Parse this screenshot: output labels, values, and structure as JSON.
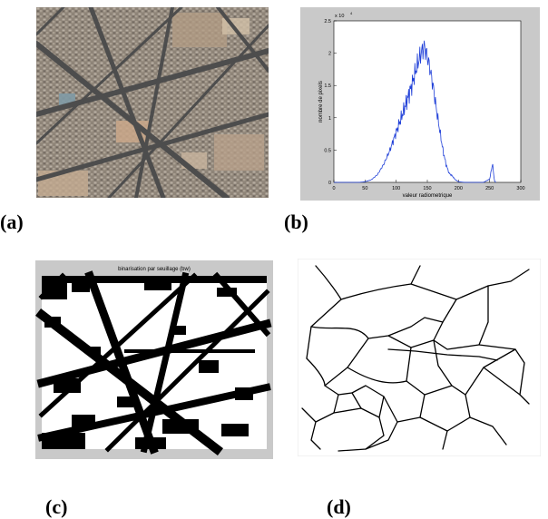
{
  "figure": {
    "captions": {
      "a": "(a)",
      "b": "(b)",
      "c": "(c)",
      "d": "(d)"
    }
  },
  "panel_c": {
    "title": "binarisation par seuillage (bw)"
  },
  "colors": {
    "curve": "#1f3fd8",
    "frame_bg": "#c9c9c9",
    "aerial_base": "#8b7f72",
    "road": "#4b4b4b"
  },
  "chart_data": {
    "type": "line",
    "title": "",
    "xlabel": "valeur radiometrique",
    "ylabel": "nombre de pixels",
    "y_multiplier_label": "x 10",
    "y_multiplier_exp": "4",
    "xlim": [
      0,
      300
    ],
    "ylim": [
      0,
      2.5
    ],
    "xticks": [
      "0",
      "50",
      "100",
      "150",
      "200",
      "250",
      "300"
    ],
    "yticks": [
      "0",
      "0.5",
      "1",
      "1.5",
      "2",
      "2.5"
    ],
    "series": [
      {
        "x": [
          0,
          40,
          50,
          60,
          70,
          80,
          90,
          100,
          110,
          120,
          125,
          130,
          135,
          140,
          145,
          150,
          155,
          160,
          165,
          170,
          175,
          180,
          185,
          190,
          195,
          200,
          210,
          220,
          230,
          240,
          250,
          253,
          255,
          256,
          258,
          260
        ],
        "values": [
          0,
          0,
          0.01,
          0.04,
          0.12,
          0.28,
          0.5,
          0.78,
          1.05,
          1.35,
          1.5,
          1.68,
          1.85,
          2.0,
          2.1,
          1.95,
          1.72,
          1.45,
          1.1,
          0.8,
          0.5,
          0.28,
          0.14,
          0.1,
          0.04,
          0.01,
          0.0,
          0.0,
          0.0,
          0.0,
          0.05,
          0.2,
          0.3,
          0.15,
          0.02,
          0.0
        ]
      }
    ]
  }
}
